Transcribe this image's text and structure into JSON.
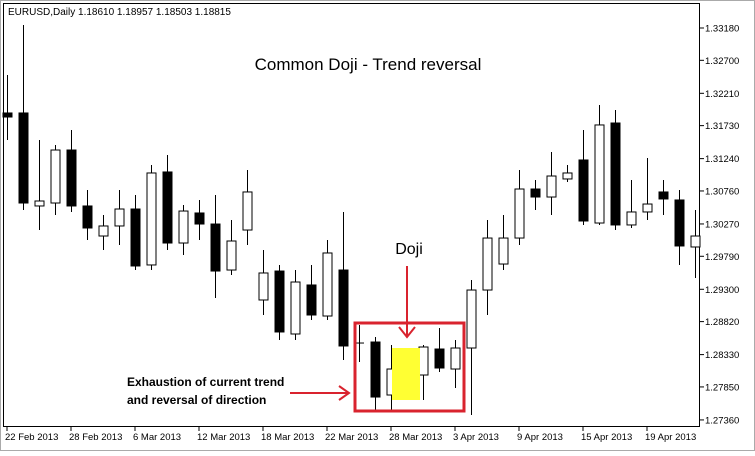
{
  "chart_data": {
    "type": "candlestick",
    "header": "EURUSD,Daily  1.18610 1.18957 1.18503 1.18815",
    "title": "Common Doji - Trend reversal",
    "annotations": {
      "doji": "Doji",
      "note": [
        "Exhaustion of current trend",
        "and reversal of direction"
      ]
    },
    "categories": [
      "22 Feb 2013",
      null,
      null,
      null,
      "28 Feb 2013",
      null,
      null,
      null,
      "6 Mar 2013",
      null,
      null,
      null,
      "12 Mar 2013",
      null,
      null,
      null,
      "18 Mar 2013",
      null,
      null,
      null,
      "22 Mar 2013",
      null,
      null,
      null,
      "28 Mar 2013",
      null,
      null,
      null,
      "3 Apr 2013",
      null,
      null,
      null,
      "9 Apr 2013",
      null,
      null,
      null,
      "15 Apr 2013",
      null,
      null,
      null,
      "19 Apr 2013",
      null,
      null,
      null
    ],
    "open": [
      1.31918,
      1.31918,
      1.30537,
      1.30581,
      1.31368,
      1.30537,
      1.30091,
      1.3024,
      1.30492,
      1.29661,
      1.31042,
      1.29987,
      1.30433,
      1.30269,
      1.29586,
      1.3018,
      1.29141,
      1.29571,
      1.28636,
      1.29364,
      1.28903,
      1.29586,
      1.28502,
      1.28517,
      1.2773,
      1.28101,
      1.28027,
      1.28413,
      1.28116,
      1.28428,
      1.29289,
      1.29675,
      1.30061,
      1.30789,
      1.3067,
      1.30938,
      1.3122,
      1.30284,
      1.31769,
      1.30255,
      1.30448,
      1.30745,
      1.30626,
      1.29928
    ],
    "high": [
      1.32482,
      1.33225,
      1.31517,
      1.31443,
      1.31665,
      1.30774,
      1.30403,
      1.30774,
      1.307,
      1.31146,
      1.31294,
      1.30552,
      1.30626,
      1.307,
      1.30329,
      1.31071,
      1.29883,
      1.29661,
      1.29586,
      1.29661,
      1.30032,
      1.30448,
      1.2877,
      1.28591,
      1.28473,
      1.28354,
      1.28473,
      1.28725,
      1.28547,
      1.29438,
      1.30329,
      1.30403,
      1.31071,
      1.30923,
      1.31339,
      1.31146,
      1.31665,
      1.32037,
      1.31962,
      1.30923,
      1.31249,
      1.30923,
      1.30774,
      1.30477
    ],
    "low": [
      1.31517,
      1.30477,
      1.3018,
      1.30403,
      1.30448,
      1.30032,
      1.29883,
      1.29958,
      1.29586,
      1.29586,
      1.29883,
      1.29809,
      1.30032,
      1.2917,
      1.29512,
      1.29958,
      1.28918,
      1.28547,
      1.28547,
      1.28844,
      1.28844,
      1.2825,
      1.2822,
      1.27507,
      1.27507,
      1.27834,
      1.27656,
      1.28072,
      1.27834,
      1.27433,
      1.28918,
      1.29586,
      1.29958,
      1.30477,
      1.30403,
      1.30893,
      1.30255,
      1.30255,
      1.3018,
      1.3021,
      1.30329,
      1.30403,
      1.29661,
      1.29467
    ],
    "close": [
      1.31858,
      1.30581,
      1.30611,
      1.31368,
      1.30537,
      1.3021,
      1.3024,
      1.30492,
      1.29646,
      1.31027,
      1.29987,
      1.30462,
      1.30269,
      1.29571,
      1.30017,
      1.30745,
      1.29542,
      1.28666,
      1.29408,
      1.28918,
      1.29839,
      1.28458,
      1.28502,
      1.277,
      1.28116,
      1.28101,
      1.28443,
      1.28131,
      1.28428,
      1.29289,
      1.30061,
      1.30061,
      1.30789,
      1.3067,
      1.30982,
      1.31027,
      1.30314,
      1.3174,
      1.30255,
      1.30448,
      1.30566,
      1.30641,
      1.29943,
      1.30091
    ],
    "up_color": "#ffffff",
    "down_color": "#000000",
    "ylim": [
      1.27255,
      1.33551
    ],
    "yticks": [
      {
        "value": 1.3318,
        "label": "1.33180"
      },
      {
        "value": 1.327,
        "label": "1.32700"
      },
      {
        "value": 1.3221,
        "label": "1.32210"
      },
      {
        "value": 1.3173,
        "label": "1.31730"
      },
      {
        "value": 1.3124,
        "label": "1.31240"
      },
      {
        "value": 1.3076,
        "label": "1.30760"
      },
      {
        "value": 1.3027,
        "label": "1.30270"
      },
      {
        "value": 1.2979,
        "label": "1.29790"
      },
      {
        "value": 1.293,
        "label": "1.29300"
      },
      {
        "value": 1.2882,
        "label": "1.28820"
      },
      {
        "value": 1.2833,
        "label": "1.28330"
      },
      {
        "value": 1.2785,
        "label": "1.27850"
      },
      {
        "value": 1.2736,
        "label": "1.27360"
      }
    ],
    "grid": false
  }
}
